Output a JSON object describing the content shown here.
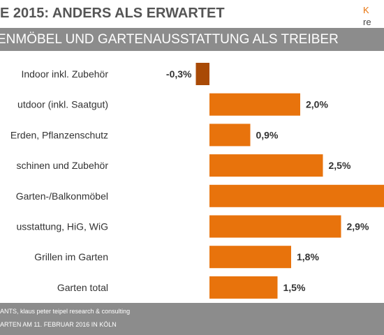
{
  "header": {
    "title": "E 2015: ANDERS ALS ERWARTET",
    "banner": "ENMÖBEL UND GARTENAUSSTATTUNG ALS TREIBER",
    "logo_line1": "K",
    "logo_line2": "re"
  },
  "footer": {
    "source": "ANTS, klaus peter teipel research & consulting",
    "event": "ARTEN AM 11. FEBRUAR 2016 IN KÖLN"
  },
  "colors": {
    "positive_bar": "#e8730c",
    "negative_bar": "#a94a06",
    "banner_bg": "#8c8c8c"
  },
  "chart_data": {
    "type": "bar",
    "orientation": "horizontal",
    "categories": [
      "Indoor inkl. Zubehör",
      "utdoor (inkl. Saatgut)",
      "Erden, Pflanzenschutz",
      "schinen und Zubehör",
      "Garten-/Balkonmöbel",
      "usstattung, HiG, WiG",
      "Grillen im Garten",
      "Garten total"
    ],
    "values": [
      -0.3,
      2.0,
      0.9,
      2.5,
      null,
      2.9,
      1.8,
      1.5
    ],
    "value_labels": [
      "-0,3%",
      "2,0%",
      "0,9%",
      "2,5%",
      "",
      "2,9%",
      "1,8%",
      "1,5%"
    ],
    "axis_max": 2.9,
    "note_cropped": "Garten-/Balkonmöbel bar extends beyond the visible area; its value label is not visible"
  }
}
